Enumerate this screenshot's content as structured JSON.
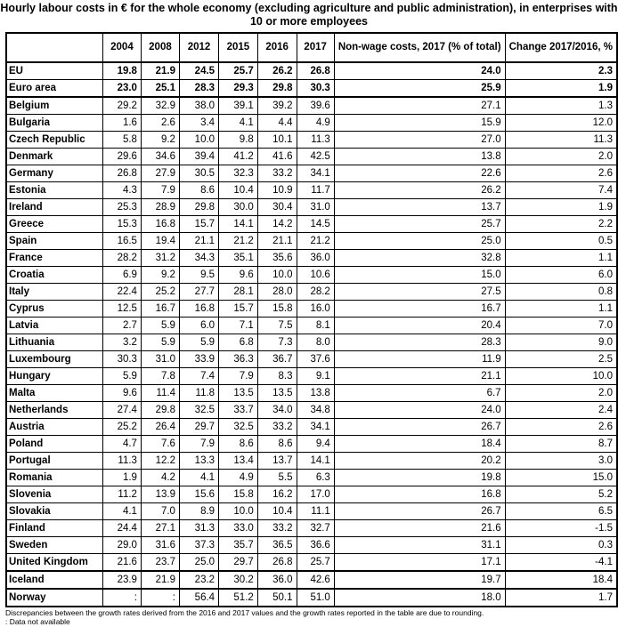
{
  "title": "Hourly labour costs in € for the whole economy (excluding agriculture and public administration), in enterprises with 10 or more employees",
  "headers": [
    "",
    "2004",
    "2008",
    "2012",
    "2015",
    "2016",
    "2017",
    "Non-wage  costs, 2017 (% of total)",
    "Change 2017/2016, %"
  ],
  "rows": [
    [
      "EU",
      "19.8",
      "21.9",
      "24.5",
      "25.7",
      "26.2",
      "26.8",
      "24.0",
      "2.3"
    ],
    [
      "Euro area",
      "23.0",
      "25.1",
      "28.3",
      "29.3",
      "29.8",
      "30.3",
      "25.9",
      "1.9"
    ],
    [
      "Belgium",
      "29.2",
      "32.9",
      "38.0",
      "39.1",
      "39.2",
      "39.6",
      "27.1",
      "1.3"
    ],
    [
      "Bulgaria",
      "1.6",
      "2.6",
      "3.4",
      "4.1",
      "4.4",
      "4.9",
      "15.9",
      "12.0"
    ],
    [
      "Czech Republic",
      "5.8",
      "9.2",
      "10.0",
      "9.8",
      "10.1",
      "11.3",
      "27.0",
      "11.3"
    ],
    [
      "Denmark",
      "29.6",
      "34.6",
      "39.4",
      "41.2",
      "41.6",
      "42.5",
      "13.8",
      "2.0"
    ],
    [
      "Germany",
      "26.8",
      "27.9",
      "30.5",
      "32.3",
      "33.2",
      "34.1",
      "22.6",
      "2.6"
    ],
    [
      "Estonia",
      "4.3",
      "7.9",
      "8.6",
      "10.4",
      "10.9",
      "11.7",
      "26.2",
      "7.4"
    ],
    [
      "Ireland",
      "25.3",
      "28.9",
      "29.8",
      "30.0",
      "30.4",
      "31.0",
      "13.7",
      "1.9"
    ],
    [
      "Greece",
      "15.3",
      "16.8",
      "15.7",
      "14.1",
      "14.2",
      "14.5",
      "25.7",
      "2.2"
    ],
    [
      "Spain",
      "16.5",
      "19.4",
      "21.1",
      "21.2",
      "21.1",
      "21.2",
      "25.0",
      "0.5"
    ],
    [
      "France",
      "28.2",
      "31.2",
      "34.3",
      "35.1",
      "35.6",
      "36.0",
      "32.8",
      "1.1"
    ],
    [
      "Croatia",
      "6.9",
      "9.2",
      "9.5",
      "9.6",
      "10.0",
      "10.6",
      "15.0",
      "6.0"
    ],
    [
      "Italy",
      "22.4",
      "25.2",
      "27.7",
      "28.1",
      "28.0",
      "28.2",
      "27.5",
      "0.8"
    ],
    [
      "Cyprus",
      "12.5",
      "16.7",
      "16.8",
      "15.7",
      "15.8",
      "16.0",
      "16.7",
      "1.1"
    ],
    [
      "Latvia",
      "2.7",
      "5.9",
      "6.0",
      "7.1",
      "7.5",
      "8.1",
      "20.4",
      "7.0"
    ],
    [
      "Lithuania",
      "3.2",
      "5.9",
      "5.9",
      "6.8",
      "7.3",
      "8.0",
      "28.3",
      "9.0"
    ],
    [
      "Luxembourg",
      "30.3",
      "31.0",
      "33.9",
      "36.3",
      "36.7",
      "37.6",
      "11.9",
      "2.5"
    ],
    [
      "Hungary",
      "5.9",
      "7.8",
      "7.4",
      "7.9",
      "8.3",
      "9.1",
      "21.1",
      "10.0"
    ],
    [
      "Malta",
      "9.6",
      "11.4",
      "11.8",
      "13.5",
      "13.5",
      "13.8",
      "6.7",
      "2.0"
    ],
    [
      "Netherlands",
      "27.4",
      "29.8",
      "32.5",
      "33.7",
      "34.0",
      "34.8",
      "24.0",
      "2.4"
    ],
    [
      "Austria",
      "25.2",
      "26.4",
      "29.7",
      "32.5",
      "33.2",
      "34.1",
      "26.7",
      "2.6"
    ],
    [
      "Poland",
      "4.7",
      "7.6",
      "7.9",
      "8.6",
      "8.6",
      "9.4",
      "18.4",
      "8.7"
    ],
    [
      "Portugal",
      "11.3",
      "12.2",
      "13.3",
      "13.4",
      "13.7",
      "14.1",
      "20.2",
      "3.0"
    ],
    [
      "Romania",
      "1.9",
      "4.2",
      "4.1",
      "4.9",
      "5.5",
      "6.3",
      "19.8",
      "15.0"
    ],
    [
      "Slovenia",
      "11.2",
      "13.9",
      "15.6",
      "15.8",
      "16.2",
      "17.0",
      "16.8",
      "5.2"
    ],
    [
      "Slovakia",
      "4.1",
      "7.0",
      "8.9",
      "10.0",
      "10.4",
      "11.1",
      "26.7",
      "6.5"
    ],
    [
      "Finland",
      "24.4",
      "27.1",
      "31.3",
      "33.0",
      "33.2",
      "32.7",
      "21.6",
      "-1.5"
    ],
    [
      "Sweden",
      "29.0",
      "31.6",
      "37.3",
      "35.7",
      "36.5",
      "36.6",
      "31.1",
      "0.3"
    ],
    [
      "United Kingdom",
      "21.6",
      "23.7",
      "25.0",
      "29.7",
      "26.8",
      "25.7",
      "17.1",
      "-4.1"
    ],
    [
      "Iceland",
      "23.9",
      "21.9",
      "23.2",
      "30.2",
      "36.0",
      "42.6",
      "19.7",
      "18.4"
    ],
    [
      "Norway",
      ":",
      ":",
      "56.4",
      "51.2",
      "50.1",
      "51.0",
      "18.0",
      "1.7"
    ]
  ],
  "notes": [
    "Discrepancies between the growth rates derived from the 2016 and 2017 values and the growth rates reported in the table are due to rounding.",
    ": Data not available"
  ]
}
